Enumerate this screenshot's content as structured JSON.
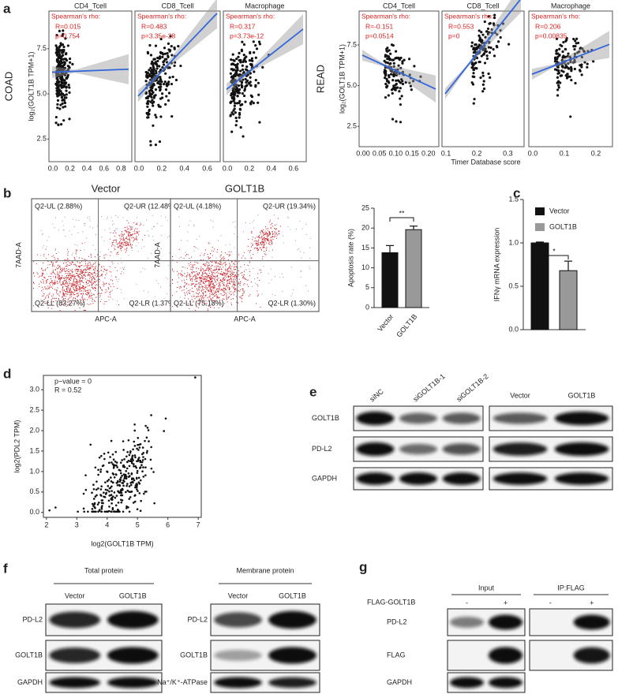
{
  "a": {
    "label": "a",
    "x_label": "Timer Database score",
    "groups": [
      {
        "name": "COAD",
        "y_label": "log₂(GOLT1B TPM+1)",
        "yticks": [
          "2.5",
          "5.0",
          "7.5"
        ],
        "facets": [
          {
            "title": "CD4_Tcell",
            "stat": "Spearman's rho:",
            "r": "R=0.015",
            "p": "p=0.754",
            "xticks": [
              "0.0",
              "0.2",
              "0.4",
              "0.6",
              "0.8"
            ]
          },
          {
            "title": "CD8_Tcell",
            "stat": "Spearman's rho:",
            "r": "R=0.483",
            "p": "p=3.35e-28",
            "xticks": [
              "0.0",
              "0.2",
              "0.4",
              "0.6"
            ]
          },
          {
            "title": "Macrophage",
            "stat": "Spearman's rho:",
            "r": "R=0.317",
            "p": "p=3.73e-12",
            "xticks": [
              "0.0",
              "0.2",
              "0.4",
              "0.6"
            ]
          }
        ]
      },
      {
        "name": "READ",
        "y_label": "log₂(GOLT1B TPM+1)",
        "yticks": [
          "2.5",
          "5.0",
          "7.5"
        ],
        "facets": [
          {
            "title": "CD4_Tcell",
            "stat": "Spearman's rho:",
            "r": "R=-0.151",
            "p": "p=0.0514",
            "xticks": [
              "0.00",
              "0.05",
              "0.10",
              "0.15",
              "0.20"
            ]
          },
          {
            "title": "CD8_Tcell",
            "stat": "Spearman's rho:",
            "r": "R=0.553",
            "p": "p=0",
            "xticks": [
              "0.1",
              "0.2",
              "0.3"
            ]
          },
          {
            "title": "Macrophage",
            "stat": "Spearman's rho:",
            "r": "R=0.206",
            "p": "p=0.00835",
            "xticks": [
              "0.0",
              "0.1",
              "0.2"
            ]
          }
        ]
      }
    ]
  },
  "b": {
    "label": "b",
    "y_label": "7AAD-A",
    "x_label": "APC-A",
    "flow": [
      {
        "title": "Vector",
        "quadrants": [
          "Q2-UL (2.88%)",
          "Q2-UR (12.48%)",
          "Q2-LL (83.27%)",
          "Q2-LR (1.37%)"
        ]
      },
      {
        "title": "GOLT1B",
        "quadrants": [
          "Q2-UL (4.18%)",
          "Q2-UR (19.34%)",
          "Q2-LL (75.18%)",
          "Q2-LR (1.30%)"
        ]
      }
    ],
    "bar": {
      "y_label": "Apoptosis rate (%)",
      "categories": [
        "Vector",
        "GOLT1B"
      ],
      "values": [
        13.8,
        19.6
      ],
      "errors": [
        1.8,
        0.9
      ],
      "ylim": [
        0,
        25
      ],
      "yticks": [
        0,
        5,
        10,
        15,
        20,
        25
      ],
      "significance": "**",
      "colors": [
        "#111111",
        "#999999"
      ]
    }
  },
  "c": {
    "label": "c",
    "y_label": "IFNγ mRNA expression",
    "categories": [
      "Vector",
      "GOLT1B"
    ],
    "values": [
      1.0,
      0.68
    ],
    "errors": [
      0.01,
      0.11
    ],
    "ylim": [
      0,
      1.5
    ],
    "yticks": [
      {
        "value": 0,
        "label": "0.0"
      },
      0.5,
      {
        "value": 1,
        "label": "1.0"
      },
      1.5
    ],
    "significance": "*",
    "colors": [
      "#111111",
      "#999999"
    ]
  },
  "d": {
    "label": "d",
    "stats": [
      "p−value = 0",
      "R = 0.52"
    ],
    "x_label": "log2(GOLT1B TPM)",
    "y_label": "log2(PDL2 TPM)",
    "xlim": [
      1.9,
      7.1
    ],
    "ylim": [
      -0.12,
      3.35
    ],
    "xticks": [
      2,
      3,
      4,
      5,
      6,
      7
    ],
    "yticks": [
      {
        "value": 0,
        "label": "0.0"
      },
      0.5,
      {
        "value": 1,
        "label": "1.0"
      },
      1.5,
      {
        "value": 2,
        "label": "2.0"
      },
      2.5,
      {
        "value": 3,
        "label": "3.0"
      }
    ]
  },
  "e": {
    "label": "e",
    "lanes_left": [
      "siNC",
      "siGOLT1B-1",
      "siGOLT1B-2"
    ],
    "lanes_right": [
      "Vector",
      "GOLT1B"
    ],
    "rows": [
      "GOLT1B",
      "PD-L2",
      "GAPDH"
    ]
  },
  "f": {
    "label": "f",
    "total": {
      "title": "Total protein",
      "lanes": [
        "Vector",
        "GOLT1B"
      ],
      "rows": [
        "PD-L2",
        "GOLT1B",
        "GAPDH"
      ]
    },
    "membrane": {
      "title": "Membrane protein",
      "lanes": [
        "Vector",
        "GOLT1B"
      ],
      "rows": [
        "PD-L2",
        "GOLT1B",
        "Na⁺/K⁺-ATPase"
      ]
    }
  },
  "g": {
    "label": "g",
    "condition": "FLAG-GOLT1B",
    "groups": [
      {
        "title": "Input",
        "signs": [
          "-",
          "+"
        ]
      },
      {
        "title": "IP:FLAG",
        "signs": [
          "-",
          "+"
        ]
      }
    ],
    "rows": [
      "PD-L2",
      "FLAG",
      "GAPDH"
    ]
  }
}
